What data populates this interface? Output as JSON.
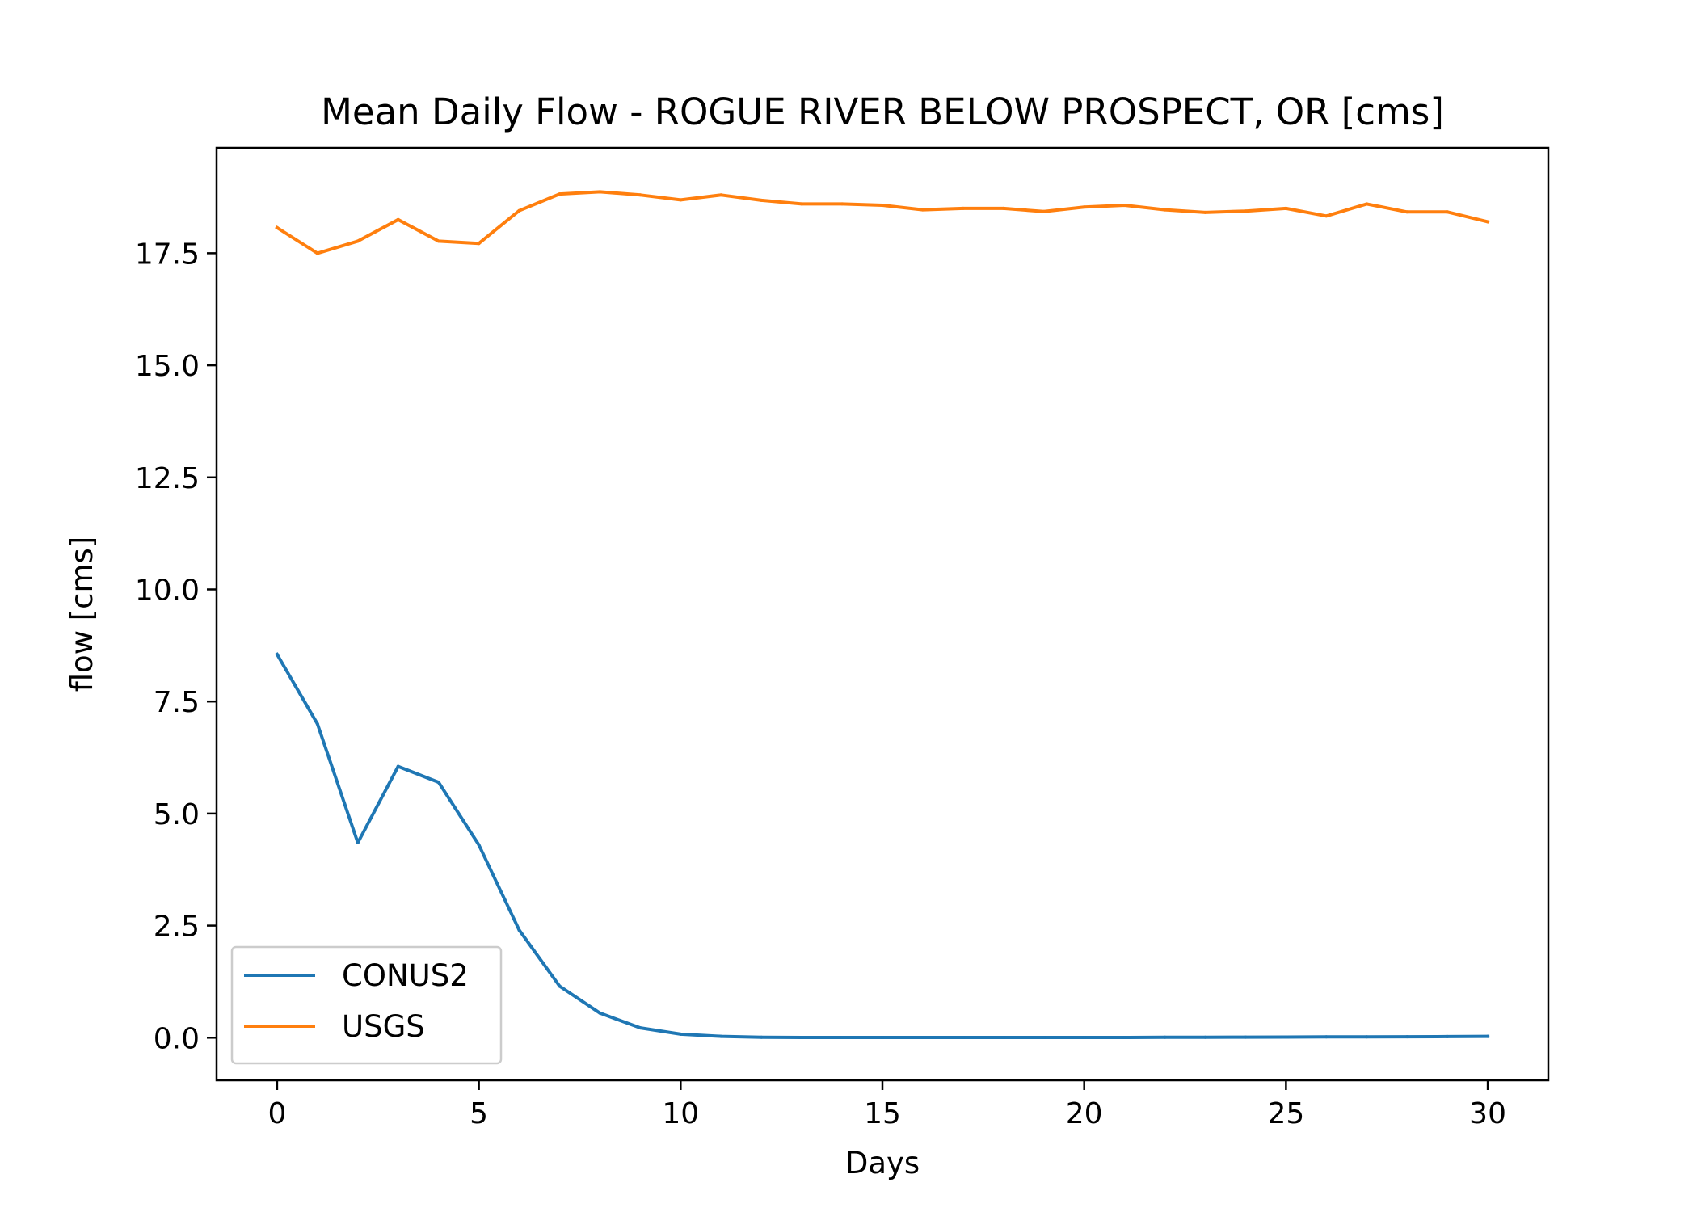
{
  "chart_data": {
    "type": "line",
    "title": "Mean Daily Flow - ROGUE RIVER BELOW PROSPECT, OR [cms]",
    "xlabel": "Days",
    "ylabel": "flow [cms]",
    "xlim": [
      -1.5,
      31.5
    ],
    "ylim": [
      -0.95,
      19.85
    ],
    "xticks": [
      0,
      5,
      10,
      15,
      20,
      25,
      30
    ],
    "xtick_labels": [
      "0",
      "5",
      "10",
      "15",
      "20",
      "25",
      "30"
    ],
    "yticks": [
      0,
      2.5,
      5,
      7.5,
      10,
      12.5,
      15,
      17.5
    ],
    "ytick_labels": [
      "0.0",
      "2.5",
      "5.0",
      "7.5",
      "10.0",
      "12.5",
      "15.0",
      "17.5"
    ],
    "grid": false,
    "legend_position": "lower-left",
    "x": [
      0,
      1,
      2,
      3,
      4,
      5,
      6,
      7,
      8,
      9,
      10,
      11,
      12,
      13,
      14,
      15,
      16,
      17,
      18,
      19,
      20,
      21,
      22,
      23,
      24,
      25,
      26,
      27,
      28,
      29,
      30
    ],
    "series": [
      {
        "name": "CONUS2",
        "color": "#1f77b4",
        "values": [
          8.55,
          7.0,
          4.35,
          6.05,
          5.7,
          4.3,
          2.4,
          1.15,
          0.55,
          0.22,
          0.08,
          0.03,
          0.01,
          0.005,
          0.005,
          0.005,
          0.005,
          0.005,
          0.005,
          0.005,
          0.005,
          0.005,
          0.008,
          0.01,
          0.012,
          0.015,
          0.018,
          0.02,
          0.022,
          0.026,
          0.03
        ]
      },
      {
        "name": "USGS",
        "color": "#ff7f0e",
        "values": [
          18.07,
          17.5,
          17.77,
          18.25,
          17.77,
          17.72,
          18.45,
          18.82,
          18.87,
          18.8,
          18.69,
          18.8,
          18.68,
          18.6,
          18.6,
          18.57,
          18.47,
          18.5,
          18.5,
          18.43,
          18.53,
          18.57,
          18.47,
          18.41,
          18.44,
          18.5,
          18.33,
          18.6,
          18.42,
          18.42,
          18.2
        ]
      }
    ]
  }
}
